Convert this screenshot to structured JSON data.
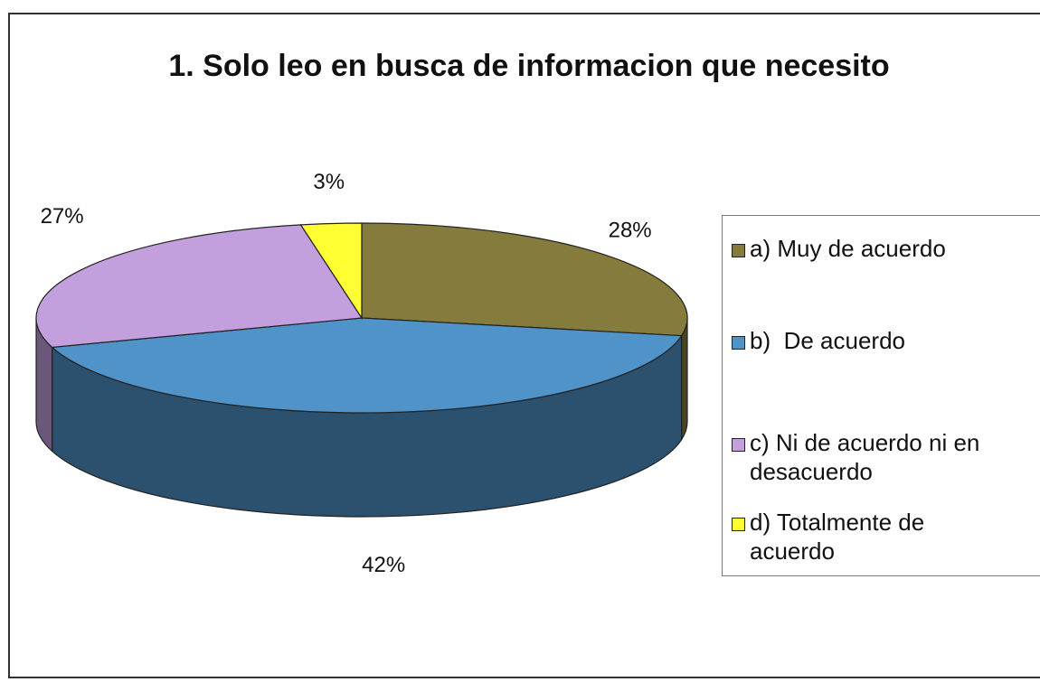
{
  "chart_data": {
    "type": "pie",
    "title": "1. Solo leo en busca de informacion que necesito",
    "categories": [
      "a) Muy de acuerdo",
      "b)  De acuerdo",
      "c) Ni de acuerdo ni en desacuerdo",
      "d) Totalmente de acuerdo"
    ],
    "values": [
      28,
      42,
      27,
      3
    ],
    "value_labels": [
      "28%",
      "42%",
      "27%",
      "3%"
    ],
    "colors": [
      "#847b3c",
      "#4f93c9",
      "#c39fde",
      "#ffff33"
    ],
    "legend": "right"
  }
}
